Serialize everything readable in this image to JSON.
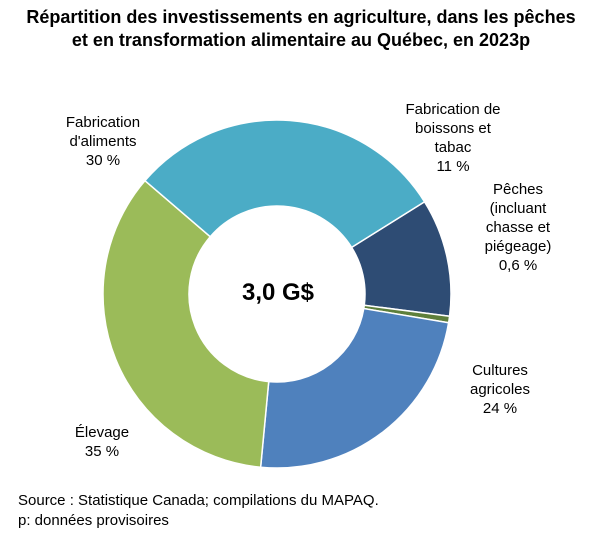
{
  "title_lines": [
    "Répartition des investissements en agriculture, dans les pêches",
    "et en transformation alimentaire au Québec, en 2023p"
  ],
  "center_label": "3,0 G$",
  "chart_data": {
    "type": "pie",
    "donut": true,
    "title": "Répartition des investissements en agriculture, dans les pêches et en transformation alimentaire au Québec, en 2023p",
    "total_label": "3,0 G$",
    "slices": [
      {
        "label": "Fabrication de boissons et tabac",
        "value": 11,
        "value_label": "11 %",
        "color": "#2e4c74"
      },
      {
        "label": "Pêches (incluant chasse et piégeage)",
        "value": 0.6,
        "value_label": "0,6 %",
        "color": "#5e7f3b"
      },
      {
        "label": "Cultures agricoles",
        "value": 24,
        "value_label": "24 %",
        "color": "#4f81bd"
      },
      {
        "label": "Élevage",
        "value": 35,
        "value_label": "35 %",
        "color": "#9bbb59"
      },
      {
        "label": "Fabrication d'aliments",
        "value": 30,
        "value_label": "30 %",
        "color": "#4bacc6"
      }
    ]
  },
  "labels": {
    "boissons": {
      "lines": [
        "Fabrication de",
        "boissons et",
        "tabac"
      ],
      "pct": "11 %"
    },
    "peches": {
      "lines": [
        "Pêches",
        "(incluant",
        "chasse et",
        "piégeage)"
      ],
      "pct": "0,6 %"
    },
    "cultures": {
      "lines": [
        "Cultures",
        "agricoles"
      ],
      "pct": "24 %"
    },
    "elevage": {
      "lines": [
        "Élevage"
      ],
      "pct": "35 %"
    },
    "aliments": {
      "lines": [
        "Fabrication",
        "d'aliments"
      ],
      "pct": "30 %"
    }
  },
  "footer": {
    "source": "Source : Statistique Canada; compilations du MAPAQ.",
    "note": "p: données provisoires"
  }
}
